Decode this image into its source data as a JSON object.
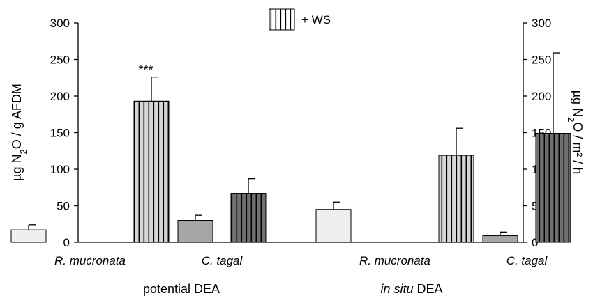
{
  "chart_data": {
    "type": "bar",
    "y_axes": {
      "left": {
        "label_parts": [
          {
            "text": "µg N",
            "sub": false
          },
          {
            "text": "2",
            "sub": true
          },
          {
            "text": "O / g AFDM",
            "sub": false
          }
        ],
        "ylim": [
          0,
          300
        ],
        "ticks": [
          "0",
          "50",
          "100",
          "150",
          "200",
          "250",
          "300"
        ]
      },
      "right": {
        "label_parts": [
          {
            "text": "µg N",
            "sub": false
          },
          {
            "text": "2",
            "sub": true
          },
          {
            "text": "O / m² / h",
            "sub": false
          }
        ],
        "ylim": [
          0,
          300
        ],
        "ticks": [
          "0",
          "50",
          "100",
          "150",
          "200",
          "250",
          "300"
        ]
      }
    },
    "legend": {
      "label": "+ WS",
      "placement": "top-center"
    },
    "grid": false,
    "groups": [
      {
        "title_parts": [
          {
            "text": "potential DEA",
            "italic": false
          }
        ],
        "axis": "left",
        "species": [
          {
            "label": "R. mucronata",
            "bars": [
              {
                "treatment": "control",
                "value": 17,
                "error": 7,
                "color": "#efefef",
                "hatch": false
              },
              {
                "treatment": "+ WS",
                "value": 193,
                "error": 33,
                "color": "#d6d6d6",
                "hatch": true,
                "annotation": "***"
              }
            ]
          },
          {
            "label": "C. tagal",
            "bars": [
              {
                "treatment": "control",
                "value": 30,
                "error": 7,
                "color": "#a6a6a6",
                "hatch": false
              },
              {
                "treatment": "+ WS",
                "value": 67,
                "error": 20,
                "color": "#707070",
                "hatch": true
              }
            ]
          }
        ]
      },
      {
        "title_parts": [
          {
            "text": "in situ",
            "italic": true
          },
          {
            "text": " DEA",
            "italic": false
          }
        ],
        "axis": "right",
        "species": [
          {
            "label": "R. mucronata",
            "bars": [
              {
                "treatment": "control",
                "value": 45,
                "error": 10,
                "color": "#efefef",
                "hatch": false
              },
              {
                "treatment": "+ WS",
                "value": 119,
                "error": 37,
                "color": "#d6d6d6",
                "hatch": true
              }
            ]
          },
          {
            "label": "C. tagal",
            "bars": [
              {
                "treatment": "control",
                "value": 9,
                "error": 5,
                "color": "#a6a6a6",
                "hatch": false
              },
              {
                "treatment": "+ WS",
                "value": 149,
                "error": 110,
                "color": "#707070",
                "hatch": true
              }
            ]
          }
        ]
      }
    ]
  }
}
